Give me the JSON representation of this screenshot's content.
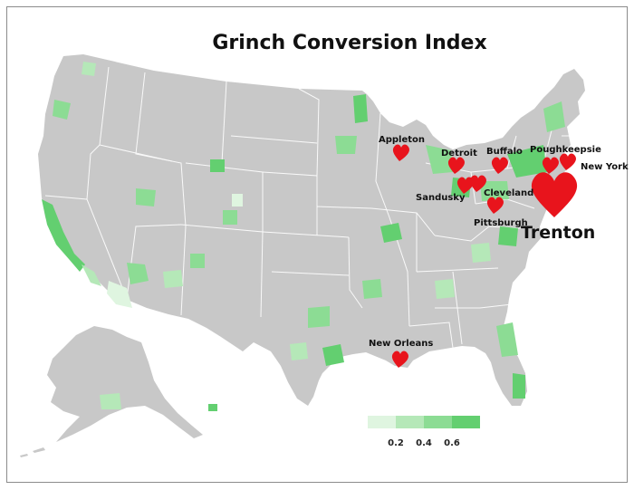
{
  "title": "Grinch Conversion Index",
  "colors": {
    "land": "#c8c8c8",
    "border": "#ffffff",
    "heart": "#e8141c",
    "green_scale": [
      "#dff5e0",
      "#b5e8b8",
      "#8cdc94",
      "#63cf70"
    ]
  },
  "legend": {
    "ticks": [
      "0.2",
      "0.4",
      "0.6"
    ]
  },
  "cities": [
    {
      "name": "Appleton",
      "size": "small"
    },
    {
      "name": "Detroit",
      "size": "small"
    },
    {
      "name": "Buffalo",
      "size": "small"
    },
    {
      "name": "Poughkeepsie",
      "size": "small"
    },
    {
      "name": "New York",
      "size": "small"
    },
    {
      "name": "Sandusky",
      "size": "small"
    },
    {
      "name": "Cleveland",
      "size": "small"
    },
    {
      "name": "Pittsburgh",
      "size": "small"
    },
    {
      "name": "Trenton",
      "size": "large"
    },
    {
      "name": "New Orleans",
      "size": "small"
    }
  ]
}
